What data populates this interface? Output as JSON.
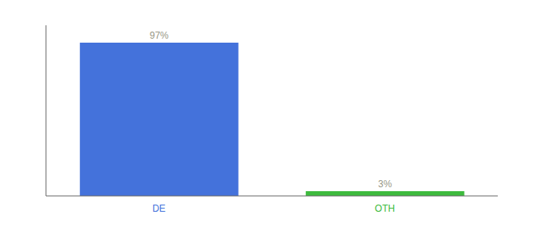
{
  "chart_data": {
    "type": "bar",
    "categories": [
      "DE",
      "OTH"
    ],
    "values": [
      97,
      3
    ],
    "value_labels": [
      "97%",
      "3%"
    ],
    "colors": [
      "#4472db",
      "#3dbb3d"
    ],
    "ylim": [
      0,
      108
    ],
    "data_labels": true,
    "tick_labels": "x",
    "grid": false
  }
}
